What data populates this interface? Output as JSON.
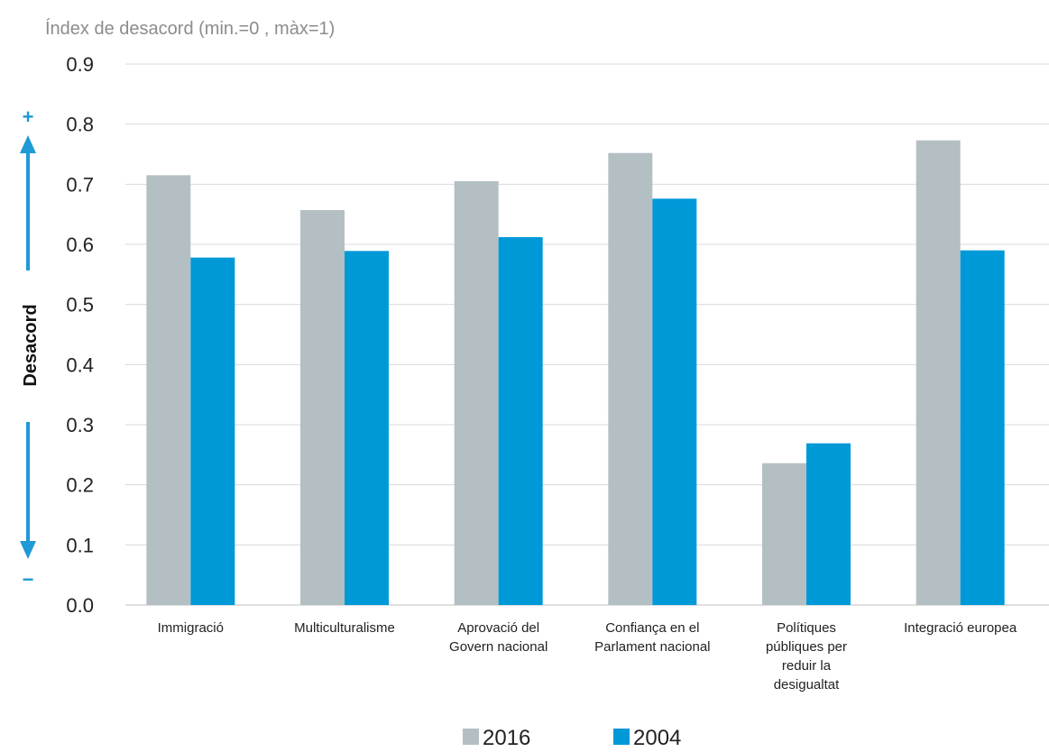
{
  "chart_data": {
    "type": "bar",
    "subtitle": "Índex de desacord (min.=0 , màx=1)",
    "ylabel": "Desacord",
    "ylim": [
      0,
      0.9
    ],
    "yticks": [
      "0.0",
      "0.1",
      "0.2",
      "0.3",
      "0.4",
      "0.5",
      "0.6",
      "0.7",
      "0.8",
      "0.9"
    ],
    "categories": [
      [
        "Immigració"
      ],
      [
        "Multiculturalisme"
      ],
      [
        "Aprovació del",
        "Govern nacional"
      ],
      [
        "Confiança en el",
        "Parlament nacional"
      ],
      [
        "Polítiques",
        "públiques per",
        "reduir la",
        "desigualtat"
      ],
      [
        "Integració europea"
      ]
    ],
    "series": [
      {
        "name": "2016",
        "color": "#b4bfc3",
        "values": [
          0.715,
          0.657,
          0.705,
          0.752,
          0.236,
          0.773
        ]
      },
      {
        "name": "2004",
        "color": "#0099d8",
        "values": [
          0.578,
          0.589,
          0.612,
          0.676,
          0.269,
          0.59
        ]
      }
    ],
    "grid": true,
    "legend": "bottom-center",
    "arrow_color": "#1f9ad6",
    "arrow_labels": {
      "up": "+",
      "down": "−"
    }
  }
}
